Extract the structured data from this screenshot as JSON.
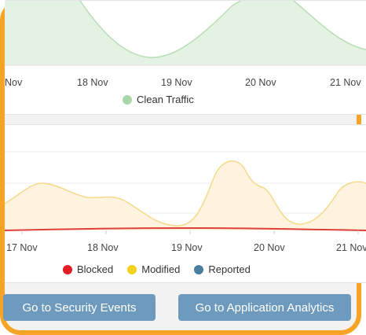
{
  "colors": {
    "frame": "#f6a326",
    "clean_fill": "#e3f2e3",
    "clean_stroke": "#b7ddb5",
    "modified_fill": "#fdf3de",
    "modified_stroke": "#f4d98a",
    "blocked_line": "#e0403a",
    "button": "#6e9bbd"
  },
  "top_chart": {
    "x_ticks": [
      "Nov",
      "18 Nov",
      "19 Nov",
      "20 Nov",
      "21 Nov"
    ],
    "legend": [
      {
        "label": "Clean Traffic",
        "color": "#a8d8a8"
      }
    ]
  },
  "bottom_chart": {
    "x_ticks": [
      "17 Nov",
      "18 Nov",
      "19 Nov",
      "20 Nov",
      "21 Nov"
    ],
    "legend": [
      {
        "label": "Blocked",
        "color": "#e21d23"
      },
      {
        "label": "Modified",
        "color": "#f3d21b"
      },
      {
        "label": "Reported",
        "color": "#4a7f9f"
      }
    ]
  },
  "buttons": {
    "security_events": "Go to Security Events",
    "application_analytics": "Go to Application Analytics"
  }
}
